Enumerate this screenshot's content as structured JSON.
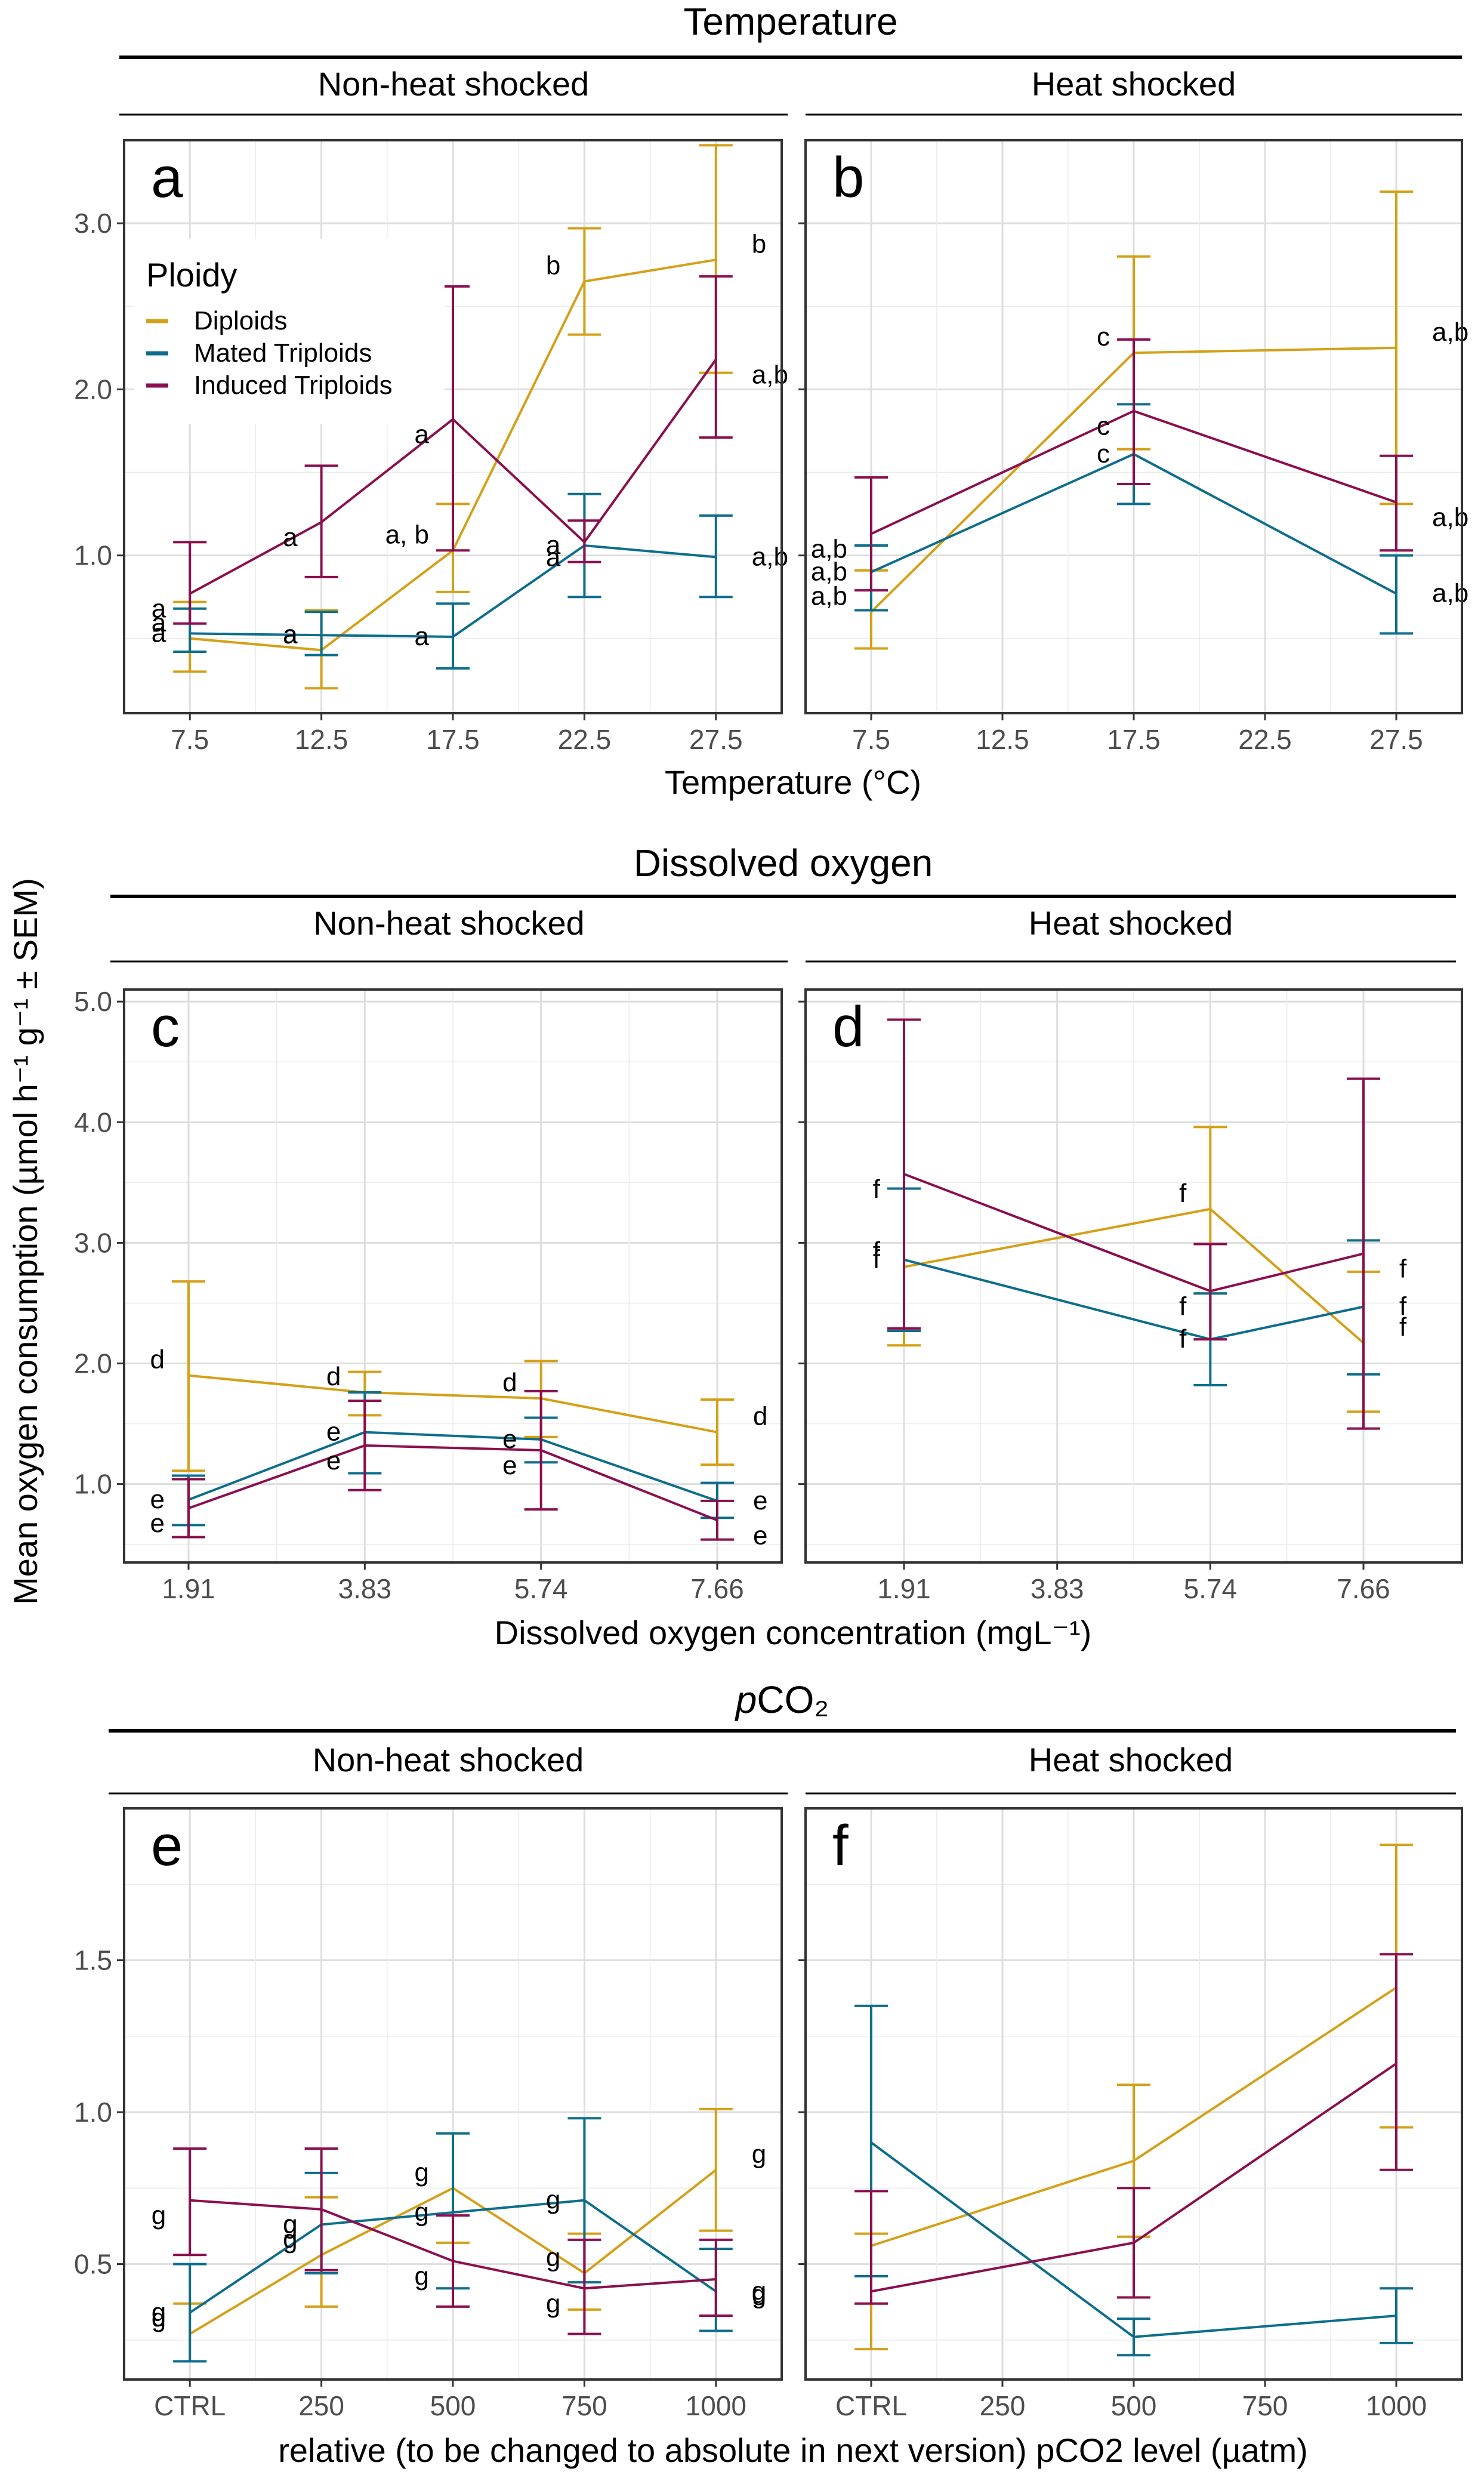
{
  "y_axis_label": "Mean oxygen consumption (µmol h⁻¹ g⁻¹ ± SEM)",
  "legend": {
    "title": "Ploidy",
    "items": [
      {
        "label": "Diploids",
        "color": "#D4A017"
      },
      {
        "label": "Mated Triploids",
        "color": "#0D6E8C"
      },
      {
        "label": "Induced Triploids",
        "color": "#8B0F4E"
      }
    ]
  },
  "rows": [
    {
      "title": "Temperature",
      "title_italic_prefix": "",
      "strip_left": "Non-heat shocked",
      "strip_right": "Heat shocked",
      "xlabel": "Temperature (°C)"
    },
    {
      "title": "Dissolved oxygen",
      "title_italic_prefix": "",
      "strip_left": "Non-heat shocked",
      "strip_right": "Heat shocked",
      "xlabel": "Dissolved oxygen concentration (mgL⁻¹)"
    },
    {
      "title": "CO₂",
      "title_italic_prefix": "p",
      "strip_left": "Non-heat shocked",
      "strip_right": "Heat shocked",
      "xlabel": "relative (to be changed to absolute in next version) pCO2 level (µatm)"
    }
  ],
  "chart_data": [
    {
      "panel": "a",
      "type": "line",
      "row": "Temperature",
      "facet": "Non-heat shocked",
      "x_ticks": [
        "7.5",
        "12.5",
        "17.5",
        "22.5",
        "27.5"
      ],
      "y_ticks": [
        "1.0",
        "2.0",
        "3.0"
      ],
      "ylim": [
        0.05,
        3.5
      ],
      "series": [
        {
          "name": "Diploids",
          "x": [
            0,
            1,
            2,
            3,
            4
          ],
          "y": [
            0.5,
            0.43,
            1.03,
            2.65,
            2.78
          ],
          "lower": [
            0.3,
            0.2,
            0.78,
            2.33,
            2.1
          ],
          "upper": [
            0.72,
            0.67,
            1.31,
            2.97,
            3.47
          ],
          "labels": [
            "a",
            "a",
            "a, b",
            "b",
            "b"
          ]
        },
        {
          "name": "Mated Triploids",
          "x": [
            0,
            1,
            2,
            3,
            4
          ],
          "y": [
            0.53,
            0.52,
            0.51,
            1.06,
            0.99
          ],
          "lower": [
            0.42,
            0.4,
            0.32,
            0.75,
            0.75
          ],
          "upper": [
            0.68,
            0.66,
            0.71,
            1.37,
            1.24
          ],
          "labels": [
            "a",
            "a",
            "a",
            "a",
            "a,b"
          ]
        },
        {
          "name": "Induced Triploids",
          "x": [
            0,
            1,
            2,
            3,
            4
          ],
          "y": [
            0.77,
            1.2,
            1.82,
            1.08,
            2.18
          ],
          "lower": [
            0.59,
            0.87,
            1.03,
            0.96,
            1.71
          ],
          "upper": [
            1.08,
            1.54,
            2.62,
            1.21,
            2.68
          ],
          "labels": [
            "a",
            "a",
            "a",
            "a",
            "a,b"
          ]
        }
      ]
    },
    {
      "panel": "b",
      "type": "line",
      "row": "Temperature",
      "facet": "Heat shocked",
      "x_ticks": [
        "7.5",
        "12.5",
        "17.5",
        "22.5",
        "27.5"
      ],
      "y_ticks": [
        "1.0",
        "2.0",
        "3.0"
      ],
      "ylim": [
        0.05,
        3.5
      ],
      "series": [
        {
          "name": "Diploids",
          "x": [
            0,
            2,
            4
          ],
          "y": [
            0.66,
            2.22,
            2.25
          ],
          "lower": [
            0.44,
            1.64,
            1.31
          ],
          "upper": [
            0.91,
            2.8,
            3.19
          ],
          "labels": [
            "a,b",
            "c",
            "a,b"
          ]
        },
        {
          "name": "Mated Triploids",
          "x": [
            0,
            2,
            4
          ],
          "y": [
            0.9,
            1.61,
            0.77
          ],
          "lower": [
            0.67,
            1.31,
            0.53
          ],
          "upper": [
            1.06,
            1.91,
            1.0
          ],
          "labels": [
            "a,b",
            "c",
            "a,b"
          ]
        },
        {
          "name": "Induced Triploids",
          "x": [
            0,
            2,
            4
          ],
          "y": [
            1.13,
            1.87,
            1.32
          ],
          "lower": [
            0.79,
            1.43,
            1.03
          ],
          "upper": [
            1.47,
            2.3,
            1.6
          ],
          "labels": [
            "a,b",
            "c",
            "a,b"
          ]
        }
      ]
    },
    {
      "panel": "c",
      "type": "line",
      "row": "Dissolved oxygen",
      "facet": "Non-heat shocked",
      "x_ticks": [
        "1.91",
        "3.83",
        "5.74",
        "7.66"
      ],
      "y_ticks": [
        "1.0",
        "2.0",
        "3.0",
        "4.0",
        "5.0"
      ],
      "ylim": [
        0.35,
        5.1
      ],
      "series": [
        {
          "name": "Diploids",
          "x": [
            0,
            1,
            2,
            3
          ],
          "y": [
            1.9,
            1.76,
            1.71,
            1.43
          ],
          "lower": [
            1.11,
            1.57,
            1.39,
            1.16
          ],
          "upper": [
            2.68,
            1.93,
            2.02,
            1.7
          ],
          "labels": [
            "d",
            "d",
            "d",
            "d"
          ]
        },
        {
          "name": "Mated Triploids",
          "x": [
            0,
            1,
            2,
            3
          ],
          "y": [
            0.87,
            1.43,
            1.37,
            0.86
          ],
          "lower": [
            0.66,
            1.09,
            1.18,
            0.72
          ],
          "upper": [
            1.07,
            1.76,
            1.55,
            1.01
          ],
          "labels": [
            "e",
            "e",
            "e",
            "e"
          ]
        },
        {
          "name": "Induced Triploids",
          "x": [
            0,
            1,
            2,
            3
          ],
          "y": [
            0.8,
            1.32,
            1.28,
            0.7
          ],
          "lower": [
            0.56,
            0.95,
            0.79,
            0.54
          ],
          "upper": [
            1.04,
            1.69,
            1.77,
            0.86
          ],
          "labels": [
            "e",
            "e",
            "e",
            "e"
          ]
        }
      ]
    },
    {
      "panel": "d",
      "type": "line",
      "row": "Dissolved oxygen",
      "facet": "Heat shocked",
      "x_ticks": [
        "1.91",
        "3.83",
        "5.74",
        "7.66"
      ],
      "y_ticks": [
        "1.0",
        "2.0",
        "3.0",
        "4.0",
        "5.0"
      ],
      "ylim": [
        0.35,
        5.1
      ],
      "series": [
        {
          "name": "Diploids",
          "x": [
            0,
            2,
            3
          ],
          "y": [
            2.8,
            3.28,
            2.17
          ],
          "lower": [
            2.15,
            2.58,
            1.6
          ],
          "upper": [
            3.45,
            3.96,
            2.76
          ],
          "labels": [
            "f",
            "f",
            "f"
          ]
        },
        {
          "name": "Mated Triploids",
          "x": [
            0,
            2,
            3
          ],
          "y": [
            2.86,
            2.2,
            2.47
          ],
          "lower": [
            2.27,
            1.82,
            1.91
          ],
          "upper": [
            3.45,
            2.58,
            3.02
          ],
          "labels": [
            "f",
            "f",
            "f"
          ]
        },
        {
          "name": "Induced Triploids",
          "x": [
            0,
            2,
            3
          ],
          "y": [
            3.57,
            2.6,
            2.91
          ],
          "lower": [
            2.29,
            2.2,
            1.46
          ],
          "upper": [
            4.85,
            2.99,
            4.36
          ],
          "labels": [
            "f",
            "f",
            "f"
          ]
        }
      ]
    },
    {
      "panel": "e",
      "type": "line",
      "row": "pCO2",
      "facet": "Non-heat shocked",
      "x_ticks": [
        "CTRL",
        "250",
        "500",
        "750",
        "1000"
      ],
      "y_ticks": [
        "0.5",
        "1.0",
        "1.5"
      ],
      "ylim": [
        0.12,
        2.0
      ],
      "series": [
        {
          "name": "Diploids",
          "x": [
            0,
            1,
            2,
            3,
            4
          ],
          "y": [
            0.27,
            0.53,
            0.75,
            0.47,
            0.81
          ],
          "lower": [
            0.18,
            0.36,
            0.57,
            0.35,
            0.61
          ],
          "upper": [
            0.37,
            0.72,
            0.93,
            0.6,
            1.01
          ],
          "labels": [
            "g",
            "g",
            "g",
            "g",
            "g"
          ]
        },
        {
          "name": "Mated Triploids",
          "x": [
            0,
            1,
            2,
            3,
            4
          ],
          "y": [
            0.34,
            0.63,
            0.67,
            0.71,
            0.41
          ],
          "lower": [
            0.18,
            0.47,
            0.42,
            0.44,
            0.28
          ],
          "upper": [
            0.5,
            0.8,
            0.93,
            0.98,
            0.55
          ],
          "labels": [
            "g",
            "g",
            "g",
            "g",
            "g"
          ]
        },
        {
          "name": "Induced Triploids",
          "x": [
            0,
            1,
            2,
            3,
            4
          ],
          "y": [
            0.71,
            0.68,
            0.51,
            0.42,
            0.45
          ],
          "lower": [
            0.53,
            0.48,
            0.36,
            0.27,
            0.33
          ],
          "upper": [
            0.88,
            0.88,
            0.66,
            0.58,
            0.58
          ],
          "labels": [
            "g",
            "g",
            "g",
            "g",
            "g"
          ]
        }
      ]
    },
    {
      "panel": "f",
      "type": "line",
      "row": "pCO2",
      "facet": "Heat shocked",
      "x_ticks": [
        "CTRL",
        "250",
        "500",
        "750",
        "1000"
      ],
      "y_ticks": [
        "0.5",
        "1.0",
        "1.5"
      ],
      "ylim": [
        0.12,
        2.0
      ],
      "series": [
        {
          "name": "Diploids",
          "x": [
            0,
            2,
            4
          ],
          "y": [
            0.56,
            0.84,
            1.41
          ],
          "lower": [
            0.22,
            0.59,
            0.95
          ],
          "upper": [
            0.6,
            1.09,
            1.88
          ],
          "labels": []
        },
        {
          "name": "Mated Triploids",
          "x": [
            0,
            2,
            4
          ],
          "y": [
            0.9,
            0.26,
            0.33
          ],
          "lower": [
            0.46,
            0.2,
            0.24
          ],
          "upper": [
            1.35,
            0.32,
            0.42
          ],
          "labels": []
        },
        {
          "name": "Induced Triploids",
          "x": [
            0,
            2,
            4
          ],
          "y": [
            0.41,
            0.57,
            1.16
          ],
          "lower": [
            0.37,
            0.39,
            0.81
          ],
          "upper": [
            0.74,
            0.75,
            1.52
          ],
          "labels": []
        }
      ]
    }
  ]
}
